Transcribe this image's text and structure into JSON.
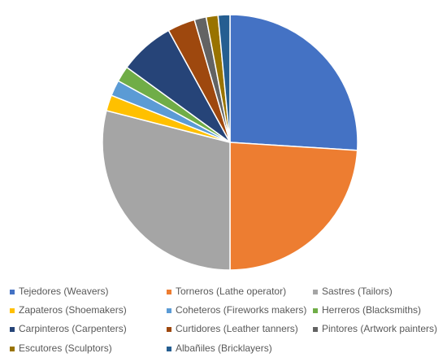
{
  "chart_data": {
    "type": "pie",
    "categories": [
      "Tejedores (Weavers)",
      "Torneros (Lathe operator)",
      "Sastres (Tailors)",
      "Zapateros (Shoemakers)",
      "Coheteros (Fireworks makers)",
      "Herreros (Blacksmiths)",
      "Carpinteros (Carpenters)",
      "Curtidores (Leather tanners)",
      "Pintores (Artwork painters)",
      "Escutores (Sculptors)",
      "Albañiles (Bricklayers)"
    ],
    "values": [
      26,
      24,
      29,
      2,
      2,
      2,
      7,
      3.5,
      1.5,
      1.5,
      1.5
    ],
    "colors": [
      "#4472c4",
      "#ed7d31",
      "#a5a5a5",
      "#ffc000",
      "#5b9bd5",
      "#70ad47",
      "#264478",
      "#9e480e",
      "#636363",
      "#997300",
      "#255e91"
    ],
    "legend": "bottom"
  }
}
